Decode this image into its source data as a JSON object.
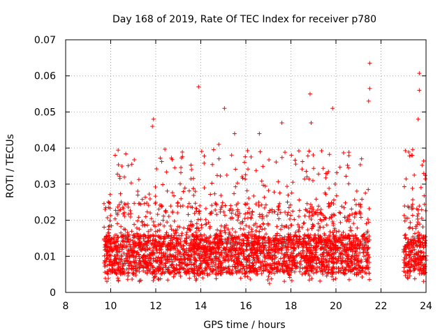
{
  "chart_data": {
    "type": "scatter",
    "title": "Day 168 of 2019, Rate Of TEC Index for receiver p780",
    "xlabel": "GPS time / hours",
    "ylabel": "ROTI / TECUs",
    "xlim": [
      8,
      24
    ],
    "ylim": [
      0,
      0.07
    ],
    "x_ticks": [
      "8",
      "10",
      "12",
      "14",
      "16",
      "18",
      "20",
      "22",
      "24"
    ],
    "y_ticks": [
      "0",
      "0.01",
      "0.02",
      "0.03",
      "0.04",
      "0.05",
      "0.06",
      "0.07"
    ],
    "grid": true,
    "marker": "+",
    "color": "#ff0000",
    "series": [
      {
        "name": "ROTI",
        "segments": [
          {
            "x_start": 9.7,
            "x_end": 21.5,
            "note": "dense cloud, baseline ~0.005-0.02"
          },
          {
            "x_start": 23.0,
            "x_end": 24.0,
            "note": "dense cloud, baseline ~0.005-0.02"
          }
        ],
        "notable_points": [
          {
            "x": 9.75,
            "y": 0.023
          },
          {
            "x": 10.2,
            "y": 0.038
          },
          {
            "x": 10.5,
            "y": 0.035
          },
          {
            "x": 11.9,
            "y": 0.048
          },
          {
            "x": 11.85,
            "y": 0.046
          },
          {
            "x": 13.9,
            "y": 0.057
          },
          {
            "x": 14.8,
            "y": 0.041
          },
          {
            "x": 15.05,
            "y": 0.051
          },
          {
            "x": 15.5,
            "y": 0.044
          },
          {
            "x": 16.6,
            "y": 0.044
          },
          {
            "x": 17.6,
            "y": 0.047
          },
          {
            "x": 18.85,
            "y": 0.055
          },
          {
            "x": 18.9,
            "y": 0.047
          },
          {
            "x": 19.85,
            "y": 0.051
          },
          {
            "x": 21.5,
            "y": 0.0635
          },
          {
            "x": 21.5,
            "y": 0.0565
          },
          {
            "x": 21.45,
            "y": 0.053
          },
          {
            "x": 23.7,
            "y": 0.0607
          },
          {
            "x": 23.7,
            "y": 0.056
          },
          {
            "x": 23.65,
            "y": 0.048
          },
          {
            "x": 23.35,
            "y": 0.038
          },
          {
            "x": 23.9,
            "y": 0.033
          },
          {
            "x": 17.05,
            "y": 0.0025
          }
        ]
      }
    ]
  }
}
